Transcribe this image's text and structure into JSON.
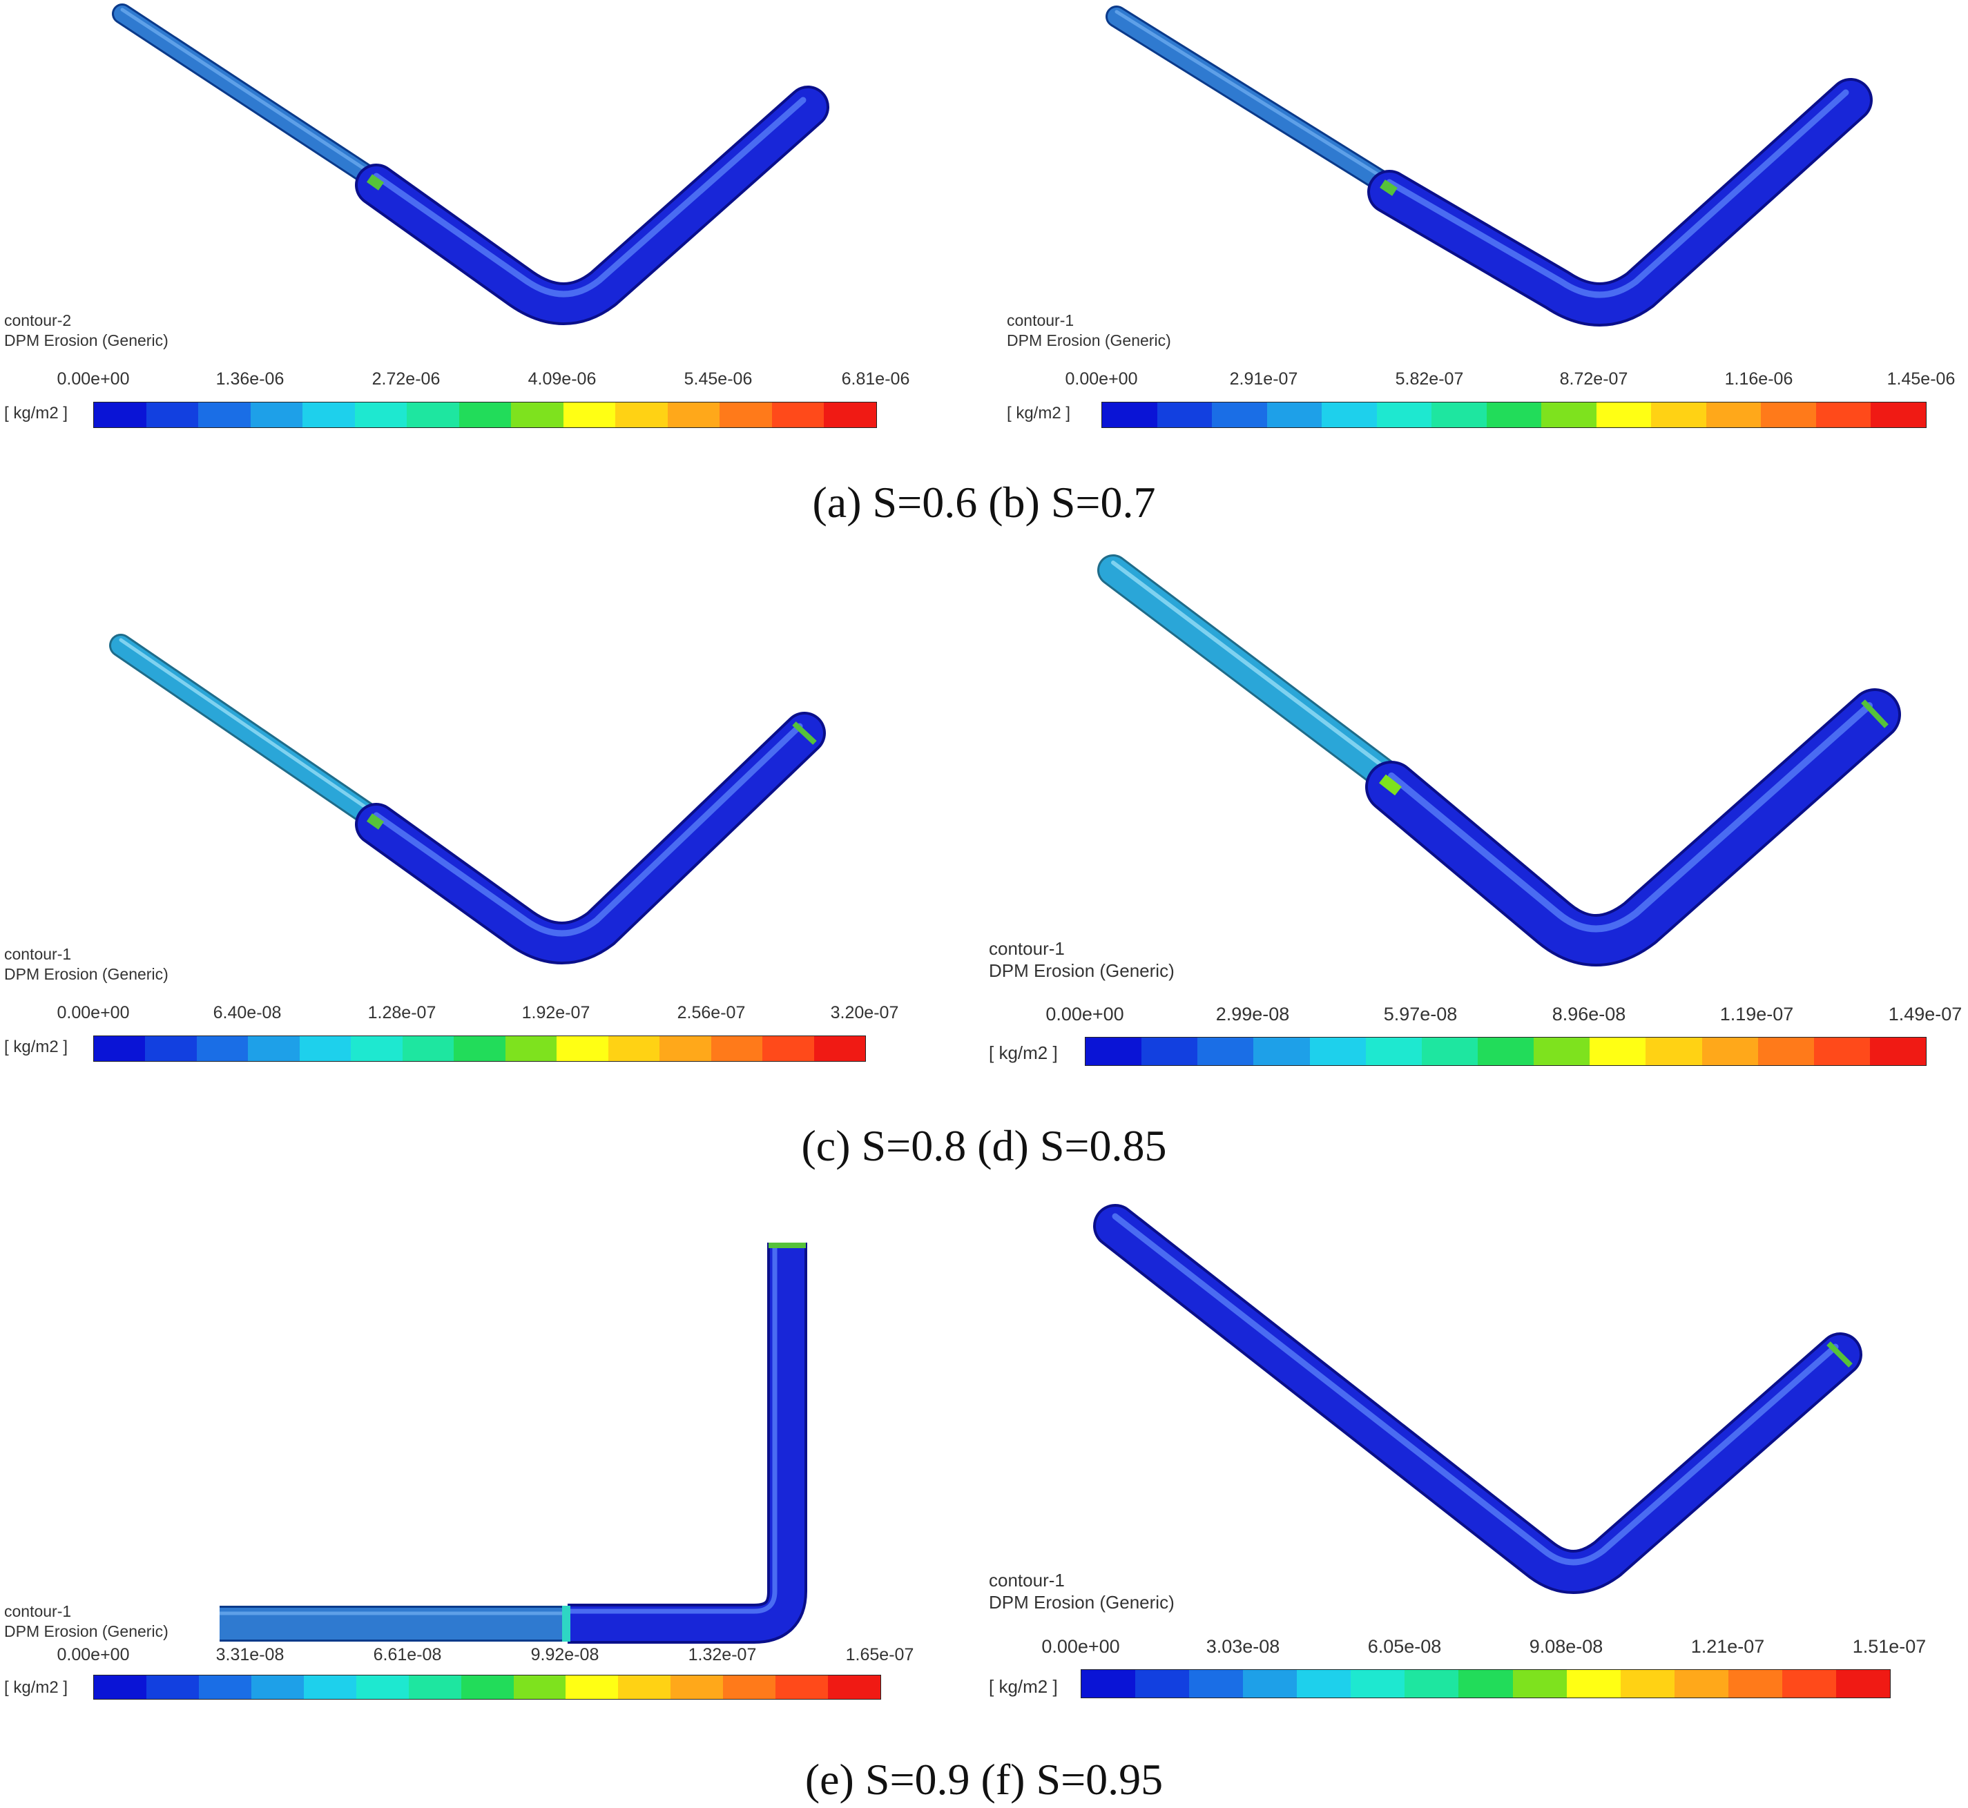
{
  "colormap": [
    "#0a14d6",
    "#1240e0",
    "#1a6ee6",
    "#1ea0e8",
    "#1ed0ec",
    "#1ee8d0",
    "#1ee6a0",
    "#22dc5a",
    "#7ee21e",
    "#ffff14",
    "#ffd214",
    "#ffa81a",
    "#ff7a1a",
    "#ff4a1a",
    "#f01a14"
  ],
  "pipe_colors": {
    "body": "#1826d8",
    "edge": "#0a0f8a",
    "highlight": "#4a6cf2",
    "inlet_cyan": "#2aa6d8",
    "inlet_steel": "#2f7ad0",
    "ring": "#56c23a"
  },
  "panels": [
    {
      "id": "a",
      "name": "contour-2",
      "variable": "DPM Erosion (Generic)",
      "unit": "[ kg/m2 ]",
      "ticks": [
        "0.00e+00",
        "1.36e-06",
        "2.72e-06",
        "4.09e-06",
        "5.45e-06",
        "6.81e-06"
      ]
    },
    {
      "id": "b",
      "name": "contour-1",
      "variable": "DPM Erosion (Generic)",
      "unit": "[ kg/m2 ]",
      "ticks": [
        "0.00e+00",
        "2.91e-07",
        "5.82e-07",
        "8.72e-07",
        "1.16e-06",
        "1.45e-06"
      ]
    },
    {
      "id": "c",
      "name": "contour-1",
      "variable": "DPM Erosion (Generic)",
      "unit": "[ kg/m2 ]",
      "ticks": [
        "0.00e+00",
        "6.40e-08",
        "1.28e-07",
        "1.92e-07",
        "2.56e-07",
        "3.20e-07"
      ]
    },
    {
      "id": "d",
      "name": "contour-1",
      "variable": "DPM Erosion (Generic)",
      "unit": "[ kg/m2 ]",
      "ticks": [
        "0.00e+00",
        "2.99e-08",
        "5.97e-08",
        "8.96e-08",
        "1.19e-07",
        "1.49e-07"
      ]
    },
    {
      "id": "e",
      "name": "contour-1",
      "variable": "DPM Erosion (Generic)",
      "unit": "[ kg/m2 ]",
      "ticks": [
        "0.00e+00",
        "3.31e-08",
        "6.61e-08",
        "9.92e-08",
        "1.32e-07",
        "1.65e-07"
      ]
    },
    {
      "id": "f",
      "name": "contour-1",
      "variable": "DPM Erosion (Generic)",
      "unit": "[ kg/m2 ]",
      "ticks": [
        "0.00e+00",
        "3.03e-08",
        "6.05e-08",
        "9.08e-08",
        "1.21e-07",
        "1.51e-07"
      ]
    }
  ],
  "captions": [
    "(a) S=0.6 (b) S=0.7",
    "(c) S=0.8 (d) S=0.85",
    "(e) S=0.9 (f) S=0.95"
  ]
}
